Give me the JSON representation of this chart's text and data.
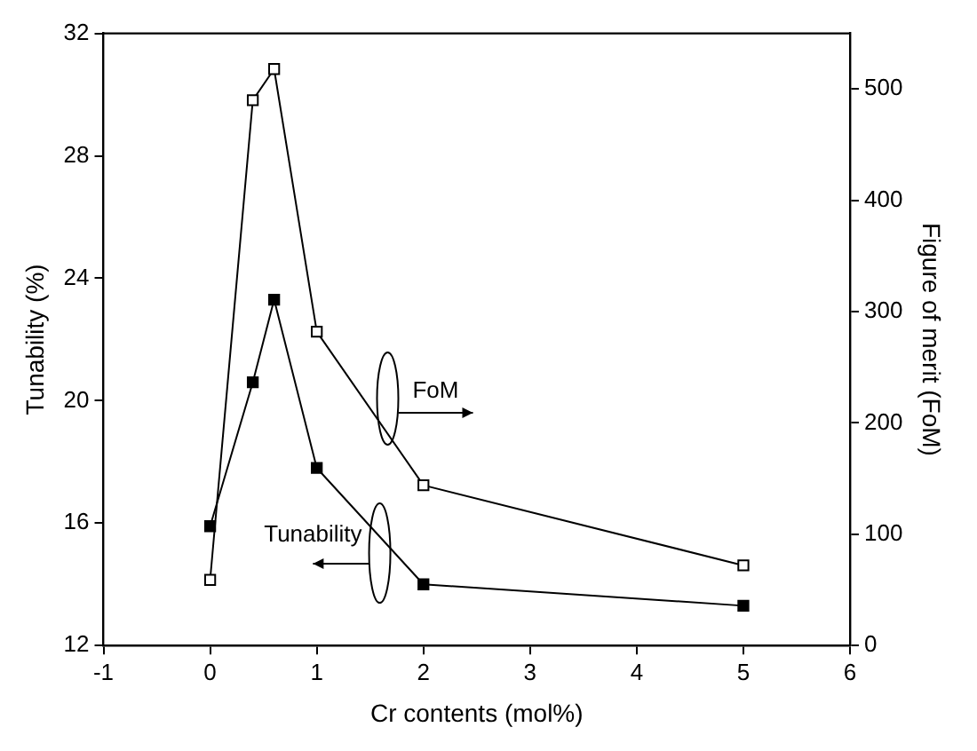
{
  "chart_data": {
    "type": "line",
    "xlabel": "Cr contents (mol%)",
    "ylabel": "Tunability (%)",
    "y2label": "Figure of merit (FoM)",
    "xlim": [
      -1,
      6
    ],
    "xticks": [
      -1,
      0,
      1,
      2,
      3,
      4,
      5,
      6
    ],
    "ylim": [
      12,
      32
    ],
    "yticks": [
      12,
      16,
      20,
      24,
      28,
      32
    ],
    "y2lim": [
      0,
      550
    ],
    "y2ticks": [
      0,
      100,
      200,
      300,
      400,
      500
    ],
    "grid": false,
    "legend": false,
    "marker": "square",
    "line_style": "solid",
    "series": [
      {
        "color": "#000000",
        "x": [
          0,
          0.4,
          0.6,
          1,
          2,
          5
        ],
        "values": [
          15.9,
          20.6,
          23.3,
          17.8,
          14.0,
          13.3
        ]
      },
      {
        "color": "#000000",
        "axis": "y2",
        "x": [
          0,
          0.4,
          0.6,
          1,
          2,
          5
        ],
        "values": [
          59,
          490,
          518,
          282,
          144,
          72
        ]
      }
    ],
    "annotations": [
      "FoM",
      "Tunability"
    ]
  }
}
